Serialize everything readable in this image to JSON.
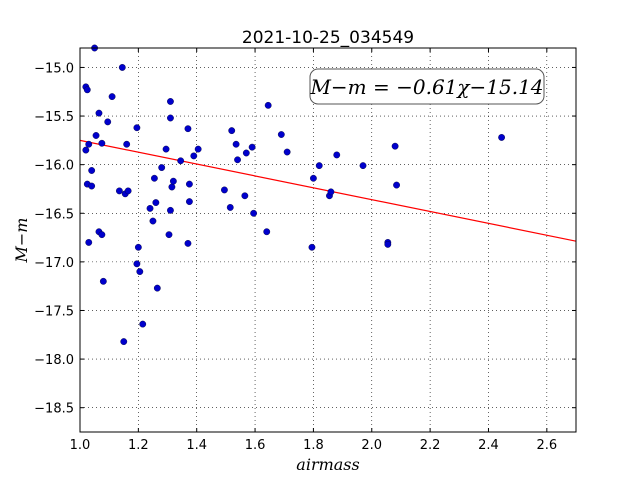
{
  "chart_data": {
    "type": "scatter",
    "title": "2021-10-25_034549",
    "xlabel": "airmass",
    "ylabel": "M−m",
    "xlim": [
      1.0,
      2.7
    ],
    "ylim": [
      -18.75,
      -14.8
    ],
    "x_ticks": [
      1.0,
      1.2,
      1.4,
      1.6,
      1.8,
      2.0,
      2.2,
      2.4,
      2.6
    ],
    "x_tick_labels": [
      "1.0",
      "1.2",
      "1.4",
      "1.6",
      "1.8",
      "2.0",
      "2.2",
      "2.4",
      "2.6"
    ],
    "y_ticks": [
      -15.0,
      -15.5,
      -16.0,
      -16.5,
      -17.0,
      -17.5,
      -18.0,
      -18.5
    ],
    "y_tick_labels": [
      "−15.0",
      "−15.5",
      "−16.0",
      "−16.5",
      "−17.0",
      "−17.5",
      "−18.0",
      "−18.5"
    ],
    "grid": true,
    "annotation": "M−m = −0.61χ−15.14",
    "fit": {
      "slope": -0.61,
      "intercept": -15.14,
      "color": "#ff0000"
    },
    "point_color": "#0000cc",
    "points": [
      [
        1.05,
        -14.8
      ],
      [
        1.02,
        -15.2
      ],
      [
        1.025,
        -15.23
      ],
      [
        1.145,
        -15.0
      ],
      [
        1.11,
        -15.3
      ],
      [
        1.065,
        -15.47
      ],
      [
        1.095,
        -15.56
      ],
      [
        1.055,
        -15.7
      ],
      [
        1.075,
        -15.78
      ],
      [
        1.03,
        -15.79
      ],
      [
        1.02,
        -15.85
      ],
      [
        1.04,
        -16.06
      ],
      [
        1.025,
        -16.2
      ],
      [
        1.04,
        -16.22
      ],
      [
        1.03,
        -16.8
      ],
      [
        1.065,
        -16.69
      ],
      [
        1.075,
        -16.72
      ],
      [
        1.08,
        -17.2
      ],
      [
        1.16,
        -15.79
      ],
      [
        1.195,
        -15.62
      ],
      [
        1.135,
        -16.27
      ],
      [
        1.155,
        -16.3
      ],
      [
        1.165,
        -16.27
      ],
      [
        1.2,
        -16.85
      ],
      [
        1.195,
        -17.02
      ],
      [
        1.205,
        -17.1
      ],
      [
        1.215,
        -17.64
      ],
      [
        1.15,
        -17.82
      ],
      [
        1.24,
        -16.45
      ],
      [
        1.25,
        -16.58
      ],
      [
        1.26,
        -16.39
      ],
      [
        1.255,
        -16.14
      ],
      [
        1.265,
        -17.27
      ],
      [
        1.28,
        -16.03
      ],
      [
        1.295,
        -15.84
      ],
      [
        1.31,
        -15.35
      ],
      [
        1.31,
        -15.52
      ],
      [
        1.315,
        -16.23
      ],
      [
        1.32,
        -16.17
      ],
      [
        1.31,
        -16.47
      ],
      [
        1.305,
        -16.72
      ],
      [
        1.345,
        -15.96
      ],
      [
        1.37,
        -15.63
      ],
      [
        1.375,
        -16.2
      ],
      [
        1.375,
        -16.38
      ],
      [
        1.37,
        -16.81
      ],
      [
        1.39,
        -15.91
      ],
      [
        1.405,
        -15.84
      ],
      [
        1.495,
        -16.26
      ],
      [
        1.515,
        -16.44
      ],
      [
        1.52,
        -15.65
      ],
      [
        1.535,
        -15.79
      ],
      [
        1.54,
        -15.95
      ],
      [
        1.565,
        -16.32
      ],
      [
        1.57,
        -15.88
      ],
      [
        1.59,
        -15.82
      ],
      [
        1.595,
        -16.5
      ],
      [
        1.64,
        -16.69
      ],
      [
        1.645,
        -15.39
      ],
      [
        1.69,
        -15.69
      ],
      [
        1.71,
        -15.87
      ],
      [
        1.795,
        -16.85
      ],
      [
        1.8,
        -16.14
      ],
      [
        1.82,
        -16.01
      ],
      [
        1.855,
        -16.32
      ],
      [
        1.86,
        -16.28
      ],
      [
        1.88,
        -15.9
      ],
      [
        1.97,
        -16.01
      ],
      [
        2.055,
        -16.8
      ],
      [
        2.055,
        -16.82
      ],
      [
        2.08,
        -15.81
      ],
      [
        2.085,
        -16.21
      ],
      [
        2.445,
        -15.72
      ]
    ]
  }
}
